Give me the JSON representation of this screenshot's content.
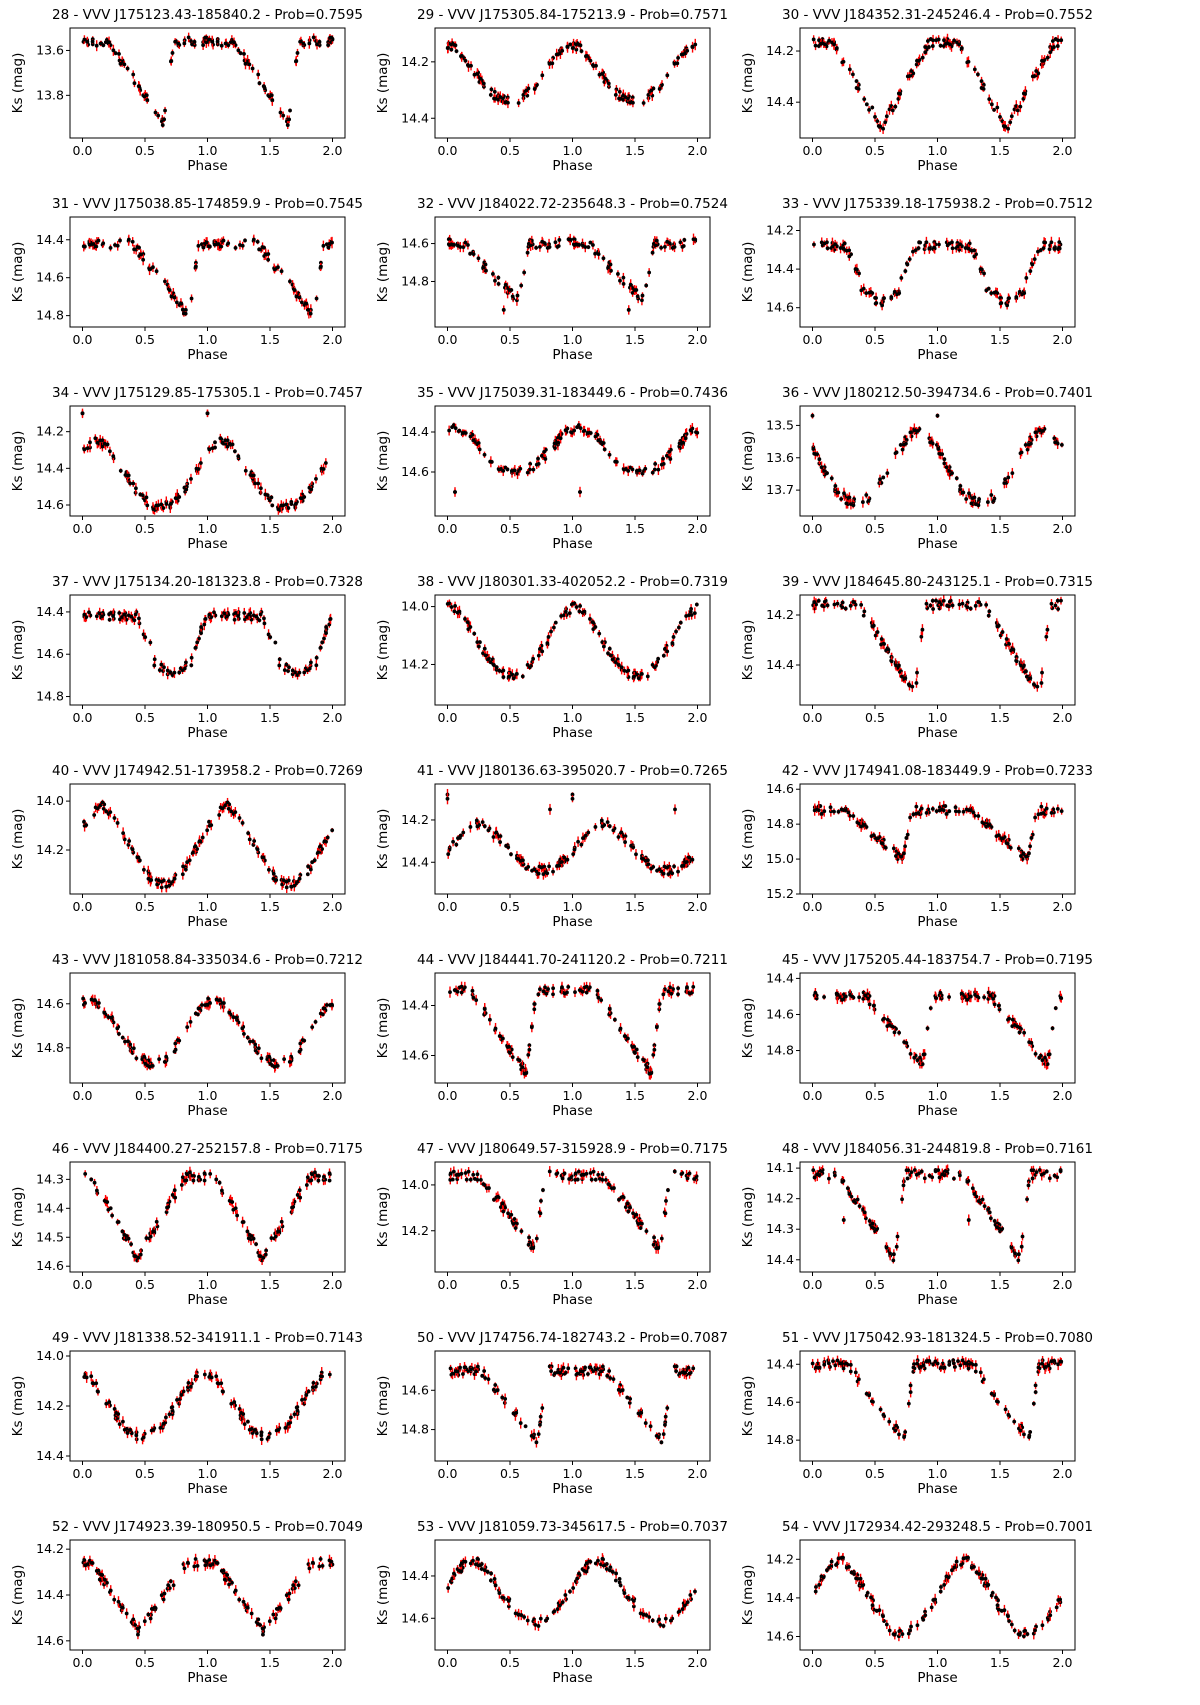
{
  "colors": {
    "point": "#000000",
    "errorbar": "#ff0000",
    "frame": "#000000"
  },
  "chart_data": [
    {
      "type": "scatter",
      "title": "28 - VVV J175123.43-185840.2 - Prob=0.7595",
      "xlabel": "Phase",
      "ylabel": "Ks (mag)",
      "xlim": [
        -0.1,
        2.1
      ],
      "ylim": [
        13.99,
        13.5
      ],
      "yticks": [
        13.6,
        13.8
      ],
      "xticks": [
        0.0,
        0.5,
        1.0,
        1.5,
        2.0
      ],
      "curve": {
        "base": 13.56,
        "primary": {
          "phase": 0.65,
          "depth": 0.36,
          "shape": "sawtooth"
        },
        "secondary": null,
        "outlier": []
      }
    },
    {
      "type": "scatter",
      "title": "29 - VVV J175305.84-175213.9 - Prob=0.7571",
      "xlabel": "Phase",
      "ylabel": "Ks (mag)",
      "xlim": [
        -0.1,
        2.1
      ],
      "ylim": [
        14.47,
        14.08
      ],
      "yticks": [
        14.2,
        14.4
      ],
      "xticks": [
        0.0,
        0.5,
        1.0,
        1.5,
        2.0
      ],
      "curve": {
        "base": 14.14,
        "primary": {
          "phase": 0.5,
          "depth": 0.2,
          "shape": "sine"
        },
        "secondary": null,
        "outlier": []
      }
    },
    {
      "type": "scatter",
      "title": "30 - VVV J184352.31-245246.4 - Prob=0.7552",
      "xlabel": "Phase",
      "ylabel": "Ks (mag)",
      "xlim": [
        -0.1,
        2.1
      ],
      "ylim": [
        14.54,
        14.11
      ],
      "yticks": [
        14.2,
        14.4
      ],
      "xticks": [
        0.0,
        0.5,
        1.0,
        1.5,
        2.0
      ],
      "curve": {
        "base": 14.17,
        "primary": {
          "phase": 0.55,
          "depth": 0.33,
          "shape": "vshape"
        },
        "secondary": null,
        "outlier": []
      }
    },
    {
      "type": "scatter",
      "title": "31 - VVV J175038.85-174859.9 - Prob=0.7545",
      "xlabel": "Phase",
      "ylabel": "Ks (mag)",
      "xlim": [
        -0.1,
        2.1
      ],
      "ylim": [
        14.86,
        14.28
      ],
      "yticks": [
        14.4,
        14.6,
        14.8
      ],
      "xticks": [
        0.0,
        0.5,
        1.0,
        1.5,
        2.0
      ],
      "curve": {
        "base": 14.42,
        "primary": {
          "phase": 0.85,
          "depth": 0.38,
          "shape": "sawtooth"
        },
        "secondary": null,
        "outlier": []
      }
    },
    {
      "type": "scatter",
      "title": "32 - VVV J184022.72-235648.3 - Prob=0.7524",
      "xlabel": "Phase",
      "ylabel": "Ks (mag)",
      "xlim": [
        -0.1,
        2.1
      ],
      "ylim": [
        15.04,
        14.46
      ],
      "yticks": [
        14.6,
        14.8
      ],
      "xticks": [
        0.0,
        0.5,
        1.0,
        1.5,
        2.0
      ],
      "curve": {
        "base": 14.6,
        "primary": {
          "phase": 0.57,
          "depth": 0.3,
          "shape": "sawtooth"
        },
        "secondary": null,
        "outlier": [
          [
            0.45,
            14.95
          ],
          [
            1.45,
            14.95
          ]
        ]
      }
    },
    {
      "type": "scatter",
      "title": "33 - VVV J175339.18-175938.2 - Prob=0.7512",
      "xlabel": "Phase",
      "ylabel": "Ks (mag)",
      "xlim": [
        -0.1,
        2.1
      ],
      "ylim": [
        14.7,
        14.13
      ],
      "yticks": [
        14.2,
        14.4,
        14.6
      ],
      "xticks": [
        0.0,
        0.5,
        1.0,
        1.5,
        2.0
      ],
      "curve": {
        "base": 14.28,
        "primary": {
          "phase": 0.55,
          "depth": 0.3,
          "shape": "box"
        },
        "secondary": null,
        "outlier": []
      }
    },
    {
      "type": "scatter",
      "title": "34 - VVV J175129.85-175305.1 - Prob=0.7457",
      "xlabel": "Phase",
      "ylabel": "Ks (mag)",
      "xlim": [
        -0.1,
        2.1
      ],
      "ylim": [
        14.66,
        14.06
      ],
      "yticks": [
        14.2,
        14.4,
        14.6
      ],
      "xticks": [
        0.0,
        0.5,
        1.0,
        1.5,
        2.0
      ],
      "curve": {
        "base": 14.25,
        "primary": {
          "phase": 0.62,
          "depth": 0.36,
          "shape": "sine"
        },
        "secondary": null,
        "outlier": [
          [
            0.0,
            14.1
          ],
          [
            1.0,
            14.1
          ]
        ]
      }
    },
    {
      "type": "scatter",
      "title": "35 - VVV J175039.31-183449.6 - Prob=0.7436",
      "xlabel": "Phase",
      "ylabel": "Ks (mag)",
      "xlim": [
        -0.1,
        2.1
      ],
      "ylim": [
        14.82,
        14.27
      ],
      "yticks": [
        14.4,
        14.6
      ],
      "xticks": [
        0.0,
        0.5,
        1.0,
        1.5,
        2.0
      ],
      "curve": {
        "base": 14.37,
        "primary": {
          "phase": 0.55,
          "depth": 0.23,
          "shape": "sine"
        },
        "secondary": null,
        "outlier": [
          [
            0.06,
            14.7
          ],
          [
            1.06,
            14.7
          ]
        ]
      }
    },
    {
      "type": "scatter",
      "title": "36 - VVV J180212.50-394734.6 - Prob=0.7401",
      "xlabel": "Phase",
      "ylabel": "Ks (mag)",
      "xlim": [
        -0.1,
        2.1
      ],
      "ylim": [
        13.78,
        13.44
      ],
      "yticks": [
        13.5,
        13.6,
        13.7
      ],
      "xticks": [
        0.0,
        0.5,
        1.0,
        1.5,
        2.0
      ],
      "curve": {
        "base": 13.51,
        "primary": {
          "phase": 0.35,
          "depth": 0.23,
          "shape": "sine"
        },
        "secondary": null,
        "outlier": [
          [
            0.0,
            13.47
          ]
        ]
      }
    },
    {
      "type": "scatter",
      "title": "37 - VVV J175134.20-181323.8 - Prob=0.7328",
      "xlabel": "Phase",
      "ylabel": "Ks (mag)",
      "xlim": [
        -0.1,
        2.1
      ],
      "ylim": [
        14.84,
        14.32
      ],
      "yticks": [
        14.4,
        14.6,
        14.8
      ],
      "xticks": [
        0.0,
        0.5,
        1.0,
        1.5,
        2.0
      ],
      "curve": {
        "base": 14.42,
        "primary": {
          "phase": 0.72,
          "depth": 0.28,
          "shape": "box"
        },
        "secondary": null,
        "outlier": []
      }
    },
    {
      "type": "scatter",
      "title": "38 - VVV J180301.33-402052.2 - Prob=0.7319",
      "xlabel": "Phase",
      "ylabel": "Ks (mag)",
      "xlim": [
        -0.1,
        2.1
      ],
      "ylim": [
        14.34,
        13.96
      ],
      "yticks": [
        14.0,
        14.2
      ],
      "xticks": [
        0.0,
        0.5,
        1.0,
        1.5,
        2.0
      ],
      "curve": {
        "base": 14.0,
        "primary": {
          "phase": 0.52,
          "depth": 0.24,
          "shape": "sine"
        },
        "secondary": null,
        "outlier": []
      }
    },
    {
      "type": "scatter",
      "title": "39 - VVV J184645.80-243125.1 - Prob=0.7315",
      "xlabel": "Phase",
      "ylabel": "Ks (mag)",
      "xlim": [
        -0.1,
        2.1
      ],
      "ylim": [
        14.56,
        14.12
      ],
      "yticks": [
        14.2,
        14.4
      ],
      "xticks": [
        0.0,
        0.5,
        1.0,
        1.5,
        2.0
      ],
      "curve": {
        "base": 14.16,
        "primary": {
          "phase": 0.82,
          "depth": 0.36,
          "shape": "sawtooth"
        },
        "secondary": null,
        "outlier": []
      }
    },
    {
      "type": "scatter",
      "title": "40 - VVV J174942.51-173958.2 - Prob=0.7269",
      "xlabel": "Phase",
      "ylabel": "Ks (mag)",
      "xlim": [
        -0.1,
        2.1
      ],
      "ylim": [
        14.38,
        13.93
      ],
      "yticks": [
        14.0,
        14.2
      ],
      "xticks": [
        0.0,
        0.5,
        1.0,
        1.5,
        2.0
      ],
      "curve": {
        "base": 14.02,
        "primary": {
          "phase": 0.65,
          "depth": 0.32,
          "shape": "sine"
        },
        "secondary": null,
        "outlier": []
      }
    },
    {
      "type": "scatter",
      "title": "41 - VVV J180136.63-395020.7 - Prob=0.7265",
      "xlabel": "Phase",
      "ylabel": "Ks (mag)",
      "xlim": [
        -0.1,
        2.1
      ],
      "ylim": [
        14.55,
        14.03
      ],
      "yticks": [
        14.2,
        14.4
      ],
      "xticks": [
        0.0,
        0.5,
        1.0,
        1.5,
        2.0
      ],
      "curve": {
        "base": 14.22,
        "primary": {
          "phase": 0.75,
          "depth": 0.22,
          "shape": "sine"
        },
        "secondary": null,
        "outlier": [
          [
            0.0,
            14.08
          ],
          [
            0.82,
            14.15
          ],
          [
            1.0,
            14.1
          ]
        ]
      }
    },
    {
      "type": "scatter",
      "title": "42 - VVV J174941.08-183449.9 - Prob=0.7233",
      "xlabel": "Phase",
      "ylabel": "Ks (mag)",
      "xlim": [
        -0.1,
        2.1
      ],
      "ylim": [
        15.2,
        14.57
      ],
      "yticks": [
        14.6,
        14.8,
        15.0,
        15.2
      ],
      "xticks": [
        0.0,
        0.5,
        1.0,
        1.5,
        2.0
      ],
      "curve": {
        "base": 14.72,
        "primary": {
          "phase": 0.72,
          "depth": 0.28,
          "shape": "sawtooth"
        },
        "secondary": null,
        "outlier": []
      }
    },
    {
      "type": "scatter",
      "title": "43 - VVV J181058.84-335034.6 - Prob=0.7212",
      "xlabel": "Phase",
      "ylabel": "Ks (mag)",
      "xlim": [
        -0.1,
        2.1
      ],
      "ylim": [
        14.96,
        14.46
      ],
      "yticks": [
        14.6,
        14.8
      ],
      "xticks": [
        0.0,
        0.5,
        1.0,
        1.5,
        2.0
      ],
      "curve": {
        "base": 14.57,
        "primary": {
          "phase": 0.56,
          "depth": 0.3,
          "shape": "sine"
        },
        "secondary": null,
        "outlier": []
      }
    },
    {
      "type": "scatter",
      "title": "44 - VVV J184441.70-241120.2 - Prob=0.7211",
      "xlabel": "Phase",
      "ylabel": "Ks (mag)",
      "xlim": [
        -0.1,
        2.1
      ],
      "ylim": [
        14.71,
        14.27
      ],
      "yticks": [
        14.4,
        14.6
      ],
      "xticks": [
        0.0,
        0.5,
        1.0,
        1.5,
        2.0
      ],
      "curve": {
        "base": 14.34,
        "primary": {
          "phase": 0.63,
          "depth": 0.33,
          "shape": "sawtooth"
        },
        "secondary": null,
        "outlier": []
      }
    },
    {
      "type": "scatter",
      "title": "45 - VVV J175205.44-183754.7 - Prob=0.7195",
      "xlabel": "Phase",
      "ylabel": "Ks (mag)",
      "xlim": [
        -0.1,
        2.1
      ],
      "ylim": [
        14.98,
        14.37
      ],
      "yticks": [
        14.4,
        14.6,
        14.8
      ],
      "xticks": [
        0.0,
        0.5,
        1.0,
        1.5,
        2.0
      ],
      "curve": {
        "base": 14.5,
        "primary": {
          "phase": 0.88,
          "depth": 0.38,
          "shape": "sawtooth"
        },
        "secondary": null,
        "outlier": []
      }
    },
    {
      "type": "scatter",
      "title": "46 - VVV J184400.27-252157.8 - Prob=0.7175",
      "xlabel": "Phase",
      "ylabel": "Ks (mag)",
      "xlim": [
        -0.1,
        2.1
      ],
      "ylim": [
        14.62,
        14.24
      ],
      "yticks": [
        14.3,
        14.4,
        14.5,
        14.6
      ],
      "xticks": [
        0.0,
        0.5,
        1.0,
        1.5,
        2.0
      ],
      "curve": {
        "base": 14.29,
        "primary": {
          "phase": 0.44,
          "depth": 0.28,
          "shape": "vshape"
        },
        "secondary": null,
        "outlier": []
      }
    },
    {
      "type": "scatter",
      "title": "47 - VVV J180649.57-315928.9 - Prob=0.7175",
      "xlabel": "Phase",
      "ylabel": "Ks (mag)",
      "xlim": [
        -0.1,
        2.1
      ],
      "ylim": [
        14.38,
        13.9
      ],
      "yticks": [
        14.0,
        14.2
      ],
      "xticks": [
        0.0,
        0.5,
        1.0,
        1.5,
        2.0
      ],
      "curve": {
        "base": 13.96,
        "primary": {
          "phase": 0.7,
          "depth": 0.32,
          "shape": "sawtooth"
        },
        "secondary": null,
        "outlier": []
      }
    },
    {
      "type": "scatter",
      "title": "48 - VVV J184056.31-244819.8 - Prob=0.7161",
      "xlabel": "Phase",
      "ylabel": "Ks (mag)",
      "xlim": [
        -0.1,
        2.1
      ],
      "ylim": [
        14.44,
        14.08
      ],
      "yticks": [
        14.1,
        14.2,
        14.3,
        14.4
      ],
      "xticks": [
        0.0,
        0.5,
        1.0,
        1.5,
        2.0
      ],
      "curve": {
        "base": 14.12,
        "primary": {
          "phase": 0.66,
          "depth": 0.28,
          "shape": "sawtooth"
        },
        "secondary": null,
        "outlier": [
          [
            0.25,
            14.27
          ],
          [
            1.25,
            14.27
          ]
        ]
      }
    },
    {
      "type": "scatter",
      "title": "49 - VVV J181338.52-341911.1 - Prob=0.7143",
      "xlabel": "Phase",
      "ylabel": "Ks (mag)",
      "xlim": [
        -0.1,
        2.1
      ],
      "ylim": [
        14.42,
        13.98
      ],
      "yticks": [
        14.0,
        14.2,
        14.4
      ],
      "xticks": [
        0.0,
        0.5,
        1.0,
        1.5,
        2.0
      ],
      "curve": {
        "base": 14.06,
        "primary": {
          "phase": 0.48,
          "depth": 0.26,
          "shape": "sine"
        },
        "secondary": null,
        "outlier": []
      }
    },
    {
      "type": "scatter",
      "title": "50 - VVV J174756.74-182743.2 - Prob=0.7087",
      "xlabel": "Phase",
      "ylabel": "Ks (mag)",
      "xlim": [
        -0.1,
        2.1
      ],
      "ylim": [
        14.96,
        14.4
      ],
      "yticks": [
        14.6,
        14.8
      ],
      "xticks": [
        0.0,
        0.5,
        1.0,
        1.5,
        2.0
      ],
      "curve": {
        "base": 14.5,
        "primary": {
          "phase": 0.72,
          "depth": 0.36,
          "shape": "sawtooth"
        },
        "secondary": null,
        "outlier": []
      }
    },
    {
      "type": "scatter",
      "title": "51 - VVV J175042.93-181324.5 - Prob=0.7080",
      "xlabel": "Phase",
      "ylabel": "Ks (mag)",
      "xlim": [
        -0.1,
        2.1
      ],
      "ylim": [
        14.91,
        14.33
      ],
      "yticks": [
        14.4,
        14.6,
        14.8
      ],
      "xticks": [
        0.0,
        0.5,
        1.0,
        1.5,
        2.0
      ],
      "curve": {
        "base": 14.4,
        "primary": {
          "phase": 0.73,
          "depth": 0.4,
          "shape": "sawtooth"
        },
        "secondary": null,
        "outlier": []
      }
    },
    {
      "type": "scatter",
      "title": "52 - VVV J174923.39-180950.5 - Prob=0.7049",
      "xlabel": "Phase",
      "ylabel": "Ks (mag)",
      "xlim": [
        -0.1,
        2.1
      ],
      "ylim": [
        14.64,
        14.16
      ],
      "yticks": [
        14.2,
        14.4,
        14.6
      ],
      "xticks": [
        0.0,
        0.5,
        1.0,
        1.5,
        2.0
      ],
      "curve": {
        "base": 14.26,
        "primary": {
          "phase": 0.45,
          "depth": 0.3,
          "shape": "vshape"
        },
        "secondary": null,
        "outlier": []
      }
    },
    {
      "type": "scatter",
      "title": "53 - VVV J181059.73-345617.5 - Prob=0.7037",
      "xlabel": "Phase",
      "ylabel": "Ks (mag)",
      "xlim": [
        -0.1,
        2.1
      ],
      "ylim": [
        14.75,
        14.23
      ],
      "yticks": [
        14.4,
        14.6
      ],
      "xticks": [
        0.0,
        0.5,
        1.0,
        1.5,
        2.0
      ],
      "curve": {
        "base": 14.32,
        "primary": {
          "phase": 0.7,
          "depth": 0.3,
          "shape": "sine"
        },
        "secondary": null,
        "outlier": []
      }
    },
    {
      "type": "scatter",
      "title": "54 - VVV J172934.42-293248.5 - Prob=0.7001",
      "xlabel": "Phase",
      "ylabel": "Ks (mag)",
      "xlim": [
        -0.1,
        2.1
      ],
      "ylim": [
        14.67,
        14.1
      ],
      "yticks": [
        14.2,
        14.4,
        14.6
      ],
      "xticks": [
        0.0,
        0.5,
        1.0,
        1.5,
        2.0
      ],
      "curve": {
        "base": 14.2,
        "primary": {
          "phase": 0.72,
          "depth": 0.38,
          "shape": "sine"
        },
        "secondary": null,
        "outlier": []
      }
    }
  ]
}
